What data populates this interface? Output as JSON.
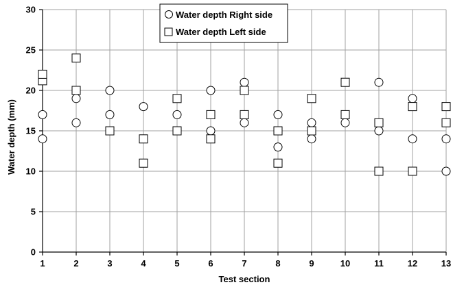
{
  "chart_data": {
    "type": "scatter",
    "xlabel": "Test section",
    "ylabel": "Water depth (mm)",
    "xlim": [
      1,
      13
    ],
    "ylim": [
      0,
      30
    ],
    "x_ticks": [
      1,
      2,
      3,
      4,
      5,
      6,
      7,
      8,
      9,
      10,
      11,
      12,
      13
    ],
    "y_ticks": [
      0,
      5,
      10,
      15,
      20,
      25,
      30
    ],
    "grid": true,
    "legend_position": "top-center",
    "series": [
      {
        "name": "Water depth Right side",
        "marker": "circle",
        "points": [
          {
            "x": 1,
            "y": 14
          },
          {
            "x": 1,
            "y": 17
          },
          {
            "x": 2,
            "y": 16
          },
          {
            "x": 2,
            "y": 19
          },
          {
            "x": 3,
            "y": 17
          },
          {
            "x": 3,
            "y": 20
          },
          {
            "x": 4,
            "y": 18
          },
          {
            "x": 5,
            "y": 17
          },
          {
            "x": 6,
            "y": 15
          },
          {
            "x": 6,
            "y": 20
          },
          {
            "x": 7,
            "y": 16
          },
          {
            "x": 7,
            "y": 21
          },
          {
            "x": 8,
            "y": 13
          },
          {
            "x": 8,
            "y": 17
          },
          {
            "x": 9,
            "y": 14
          },
          {
            "x": 9,
            "y": 16
          },
          {
            "x": 10,
            "y": 16
          },
          {
            "x": 11,
            "y": 15
          },
          {
            "x": 11,
            "y": 21
          },
          {
            "x": 12,
            "y": 14
          },
          {
            "x": 12,
            "y": 19
          },
          {
            "x": 13,
            "y": 10
          },
          {
            "x": 13,
            "y": 14
          }
        ]
      },
      {
        "name": "Water depth Left side",
        "marker": "square",
        "points": [
          {
            "x": 1,
            "y": 21.2
          },
          {
            "x": 1,
            "y": 22
          },
          {
            "x": 2,
            "y": 20
          },
          {
            "x": 2,
            "y": 24
          },
          {
            "x": 3,
            "y": 15
          },
          {
            "x": 4,
            "y": 11
          },
          {
            "x": 4,
            "y": 14
          },
          {
            "x": 5,
            "y": 15
          },
          {
            "x": 5,
            "y": 19
          },
          {
            "x": 6,
            "y": 14
          },
          {
            "x": 6,
            "y": 17
          },
          {
            "x": 7,
            "y": 17
          },
          {
            "x": 7,
            "y": 20
          },
          {
            "x": 8,
            "y": 11
          },
          {
            "x": 8,
            "y": 15
          },
          {
            "x": 9,
            "y": 15
          },
          {
            "x": 9,
            "y": 19
          },
          {
            "x": 10,
            "y": 17
          },
          {
            "x": 10,
            "y": 21
          },
          {
            "x": 11,
            "y": 10
          },
          {
            "x": 11,
            "y": 16
          },
          {
            "x": 12,
            "y": 10
          },
          {
            "x": 12,
            "y": 18
          },
          {
            "x": 13,
            "y": 16
          },
          {
            "x": 13,
            "y": 18
          }
        ]
      }
    ]
  }
}
